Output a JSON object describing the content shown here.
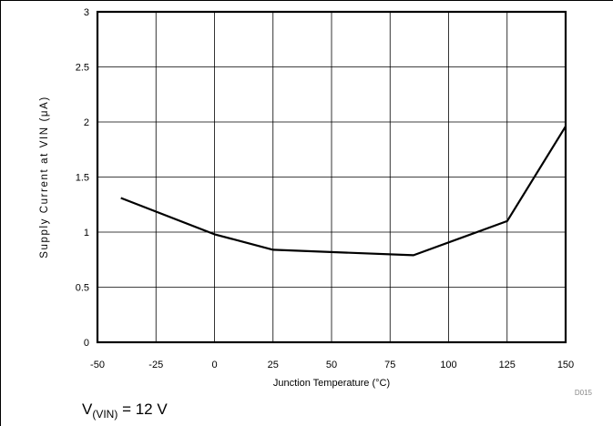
{
  "chart_data": {
    "type": "line",
    "xlabel": "Junction Temperature (°C)",
    "ylabel": "Supply Current at VIN (μA)",
    "xlim": [
      -50,
      150
    ],
    "ylim": [
      0,
      3
    ],
    "x_ticks": [
      "-50",
      "-25",
      "0",
      "25",
      "50",
      "75",
      "100",
      "125",
      "150"
    ],
    "y_ticks": [
      "0",
      "0.5",
      "1",
      "1.5",
      "2",
      "2.5",
      "3"
    ],
    "grid": true,
    "series": [
      {
        "x": [
          -40,
          0,
          25,
          85,
          125,
          150
        ],
        "y": [
          1.31,
          0.98,
          0.84,
          0.79,
          1.1,
          1.96
        ]
      }
    ],
    "figure_id": "D015",
    "condition": {
      "main": "V",
      "sub": "(VIN)",
      "value": "= 12 V"
    },
    "colors": {
      "line": "#000000",
      "grid": "#000000",
      "figure_id": "#888888"
    }
  }
}
